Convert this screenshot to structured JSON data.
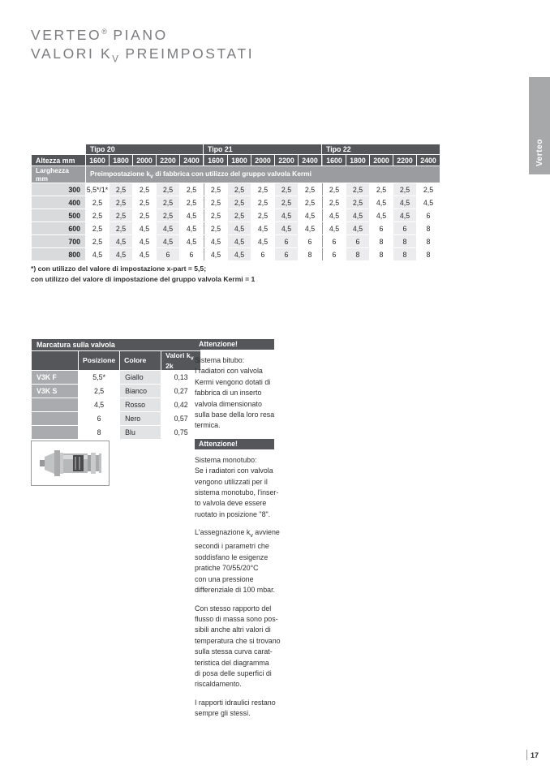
{
  "title": {
    "brand": "VERTEO",
    "reg": "®",
    "series": " PIANO",
    "line2_pre": "VALORI K",
    "line2_sub": "V",
    "line2_post": " PREIMPOSTATI"
  },
  "side_tab": "Verteo",
  "page_number": "17",
  "colors": {
    "header_dark": "#55565a",
    "header_mid": "#9b9c9f",
    "row_label_grey": "#d9dadc",
    "stripe_grey": "#ececee",
    "tab_grey": "#a7a8aa"
  },
  "main_table": {
    "corner_labels": [
      "Altezza mm",
      "Larghezza mm"
    ],
    "groups": [
      "Tipo 20",
      "Tipo 21",
      "Tipo 22"
    ],
    "col_headers": [
      "1600",
      "1800",
      "2000",
      "2200",
      "2400"
    ],
    "subheader": "Preimpostazione k_v di fabbrica con utilizzo del gruppo valvola Kermi",
    "rows": [
      {
        "label": "300",
        "values": [
          "5,5*/1*",
          "2,5",
          "2,5",
          "2,5",
          "2,5",
          "2,5",
          "2,5",
          "2,5",
          "2,5",
          "2,5",
          "2,5",
          "2,5",
          "2,5",
          "2,5",
          "2,5"
        ]
      },
      {
        "label": "400",
        "values": [
          "2,5",
          "2,5",
          "2,5",
          "2,5",
          "2,5",
          "2,5",
          "2,5",
          "2,5",
          "2,5",
          "2,5",
          "2,5",
          "2,5",
          "4,5",
          "4,5",
          "4,5"
        ]
      },
      {
        "label": "500",
        "values": [
          "2,5",
          "2,5",
          "2,5",
          "2,5",
          "4,5",
          "2,5",
          "2,5",
          "2,5",
          "4,5",
          "4,5",
          "4,5",
          "4,5",
          "4,5",
          "4,5",
          "6"
        ]
      },
      {
        "label": "600",
        "values": [
          "2,5",
          "2,5",
          "4,5",
          "4,5",
          "4,5",
          "2,5",
          "4,5",
          "4,5",
          "4,5",
          "4,5",
          "4,5",
          "4,5",
          "6",
          "6",
          "8"
        ]
      },
      {
        "label": "700",
        "values": [
          "2,5",
          "4,5",
          "4,5",
          "4,5",
          "4,5",
          "4,5",
          "4,5",
          "4,5",
          "6",
          "6",
          "6",
          "6",
          "8",
          "8",
          "8"
        ]
      },
      {
        "label": "800",
        "values": [
          "4,5",
          "4,5",
          "4,5",
          "6",
          "6",
          "4,5",
          "4,5",
          "6",
          "6",
          "8",
          "6",
          "8",
          "8",
          "8",
          "8"
        ]
      }
    ]
  },
  "footnotes": [
    "*) con utilizzo del valore di impostazione x-part = 5,5;",
    "con utilizzo del valore di impostazione del gruppo valvola Kermi = 1"
  ],
  "marcatura": {
    "title": "Marcatura sulla valvola",
    "headers": [
      "",
      "Posizione",
      "Colore",
      "Valori k_v 2k"
    ],
    "rows": [
      {
        "label": "V3K F",
        "posizione": "5,5*",
        "colore": "Giallo",
        "valore": "0,13"
      },
      {
        "label": "V3K S",
        "posizione": "2,5",
        "colore": "Bianco",
        "valore": "0,27"
      },
      {
        "label": "",
        "posizione": "4,5",
        "colore": "Rosso",
        "valore": "0,42"
      },
      {
        "label": "",
        "posizione": "6",
        "colore": "Nero",
        "valore": "0,57"
      },
      {
        "label": "",
        "posizione": "8",
        "colore": "Blu",
        "valore": "0,75"
      }
    ]
  },
  "notes": [
    {
      "badge": "Attenzione!",
      "paragraphs": [
        "Sistema bitubo:\nI radiatori con valvola\nKermi vengono dotati di\nfabbrica di un inserto\nvalvola dimensionato\nsulla base della loro resa\ntermica."
      ]
    },
    {
      "badge": "Attenzione!",
      "paragraphs": [
        "Sistema monotubo:\nSe i radiatori con valvola\nvengono utilizzati per il\nsistema monotubo, l'inser-\nto valvola deve essere\nruotato in posizione \"8\".",
        "L'assegnazione k_v avviene\nsecondi i parametri che\nsoddisfano le esigenze\npratiche 70/55/20°C\ncon una pressione\ndifferenziale di 100 mbar.",
        "Con stesso rapporto del\nflusso di massa sono pos-\nsibili anche altri valori di\ntemperatura che si trovano\nsulla stessa curva carat-\nteristica del diagramma\ndi posa delle superfici di\nriscaldamento.",
        "I rapporti idraulici restano\nsempre gli stessi."
      ]
    }
  ]
}
